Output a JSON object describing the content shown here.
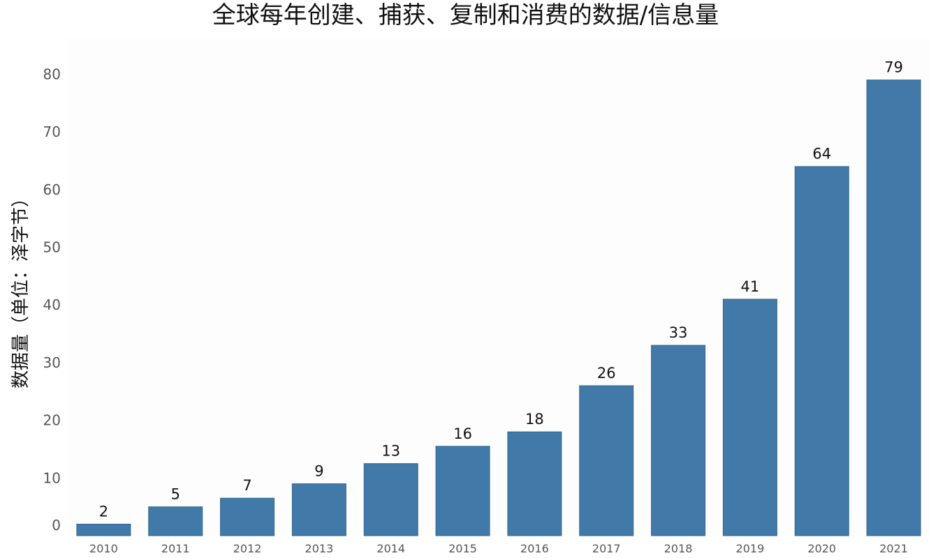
{
  "chart_data": {
    "type": "bar",
    "title": "全球每年创建、捕获、复制和消费的数据/信息量",
    "xlabel": "",
    "ylabel": "数据量（单位：泽字节）",
    "categories": [
      "2010",
      "2011",
      "2012",
      "2013",
      "2014",
      "2015",
      "2016",
      "2017",
      "2018",
      "2019",
      "2020",
      "2021"
    ],
    "values": [
      2,
      5,
      6.5,
      9,
      12.5,
      15.5,
      18,
      26,
      33,
      41,
      64,
      79
    ],
    "data_labels": [
      "2",
      "5",
      "7",
      "9",
      "13",
      "16",
      "18",
      "26",
      "33",
      "41",
      "64",
      "79"
    ],
    "ylim": [
      0,
      87
    ],
    "yticks": [
      0,
      10,
      20,
      30,
      40,
      50,
      60,
      70,
      80
    ],
    "grid": false,
    "bar_color": "#4179A8"
  }
}
